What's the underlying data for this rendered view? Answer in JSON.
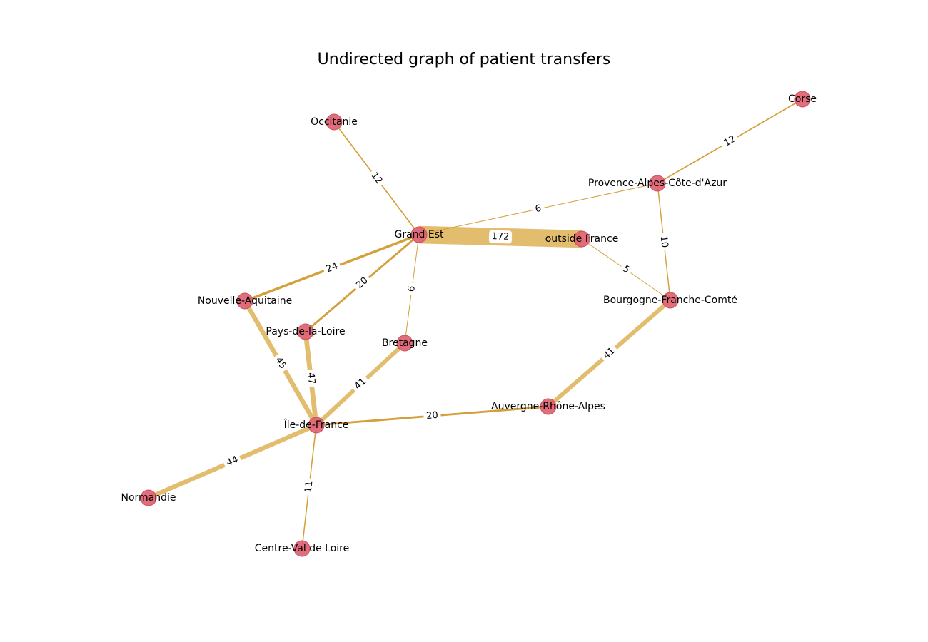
{
  "title": "Undirected graph of patient transfers",
  "colors": {
    "node_fill": "#e06272",
    "node_stroke": "#c9505f",
    "edge": "#d4a03a",
    "edge_strong": "#e2bd6e"
  },
  "nodes": [
    {
      "id": "corse",
      "label": "Corse"
    },
    {
      "id": "occitanie",
      "label": "Occitanie"
    },
    {
      "id": "paca",
      "label": "Provence-Alpes-Côte-d'Azur"
    },
    {
      "id": "grand-est",
      "label": "Grand Est"
    },
    {
      "id": "outside-france",
      "label": "outside France"
    },
    {
      "id": "nouvelle-aquitaine",
      "label": "Nouvelle-Aquitaine"
    },
    {
      "id": "bourgogne",
      "label": "Bourgogne-Franche-Comté"
    },
    {
      "id": "pays-de-la-loire",
      "label": "Pays-de-la-Loire"
    },
    {
      "id": "bretagne",
      "label": "Bretagne"
    },
    {
      "id": "auvergne",
      "label": "Auvergne-Rhône-Alpes"
    },
    {
      "id": "ile-de-france",
      "label": "Île-de-France"
    },
    {
      "id": "normandie",
      "label": "Normandie"
    },
    {
      "id": "centre-val-de-loire",
      "label": "Centre-Val de Loire"
    }
  ],
  "edges": [
    {
      "source": "grand-est",
      "target": "outside-france",
      "weight": 172
    },
    {
      "source": "nouvelle-aquitaine",
      "target": "ile-de-france",
      "weight": 45
    },
    {
      "source": "pays-de-la-loire",
      "target": "ile-de-france",
      "weight": 47
    },
    {
      "source": "bretagne",
      "target": "ile-de-france",
      "weight": 41
    },
    {
      "source": "bourgogne",
      "target": "auvergne",
      "weight": 41
    },
    {
      "source": "ile-de-france",
      "target": "normandie",
      "weight": 44
    },
    {
      "source": "grand-est",
      "target": "nouvelle-aquitaine",
      "weight": 24
    },
    {
      "source": "grand-est",
      "target": "pays-de-la-loire",
      "weight": 20
    },
    {
      "source": "ile-de-france",
      "target": "auvergne",
      "weight": 20
    },
    {
      "source": "occitanie",
      "target": "grand-est",
      "weight": 12
    },
    {
      "source": "corse",
      "target": "paca",
      "weight": 12
    },
    {
      "source": "ile-de-france",
      "target": "centre-val-de-loire",
      "weight": 11
    },
    {
      "source": "paca",
      "target": "bourgogne",
      "weight": 10
    },
    {
      "source": "grand-est",
      "target": "paca",
      "weight": 6
    },
    {
      "source": "grand-est",
      "target": "bretagne",
      "weight": 6
    },
    {
      "source": "outside-france",
      "target": "bourgogne",
      "weight": 5
    }
  ]
}
